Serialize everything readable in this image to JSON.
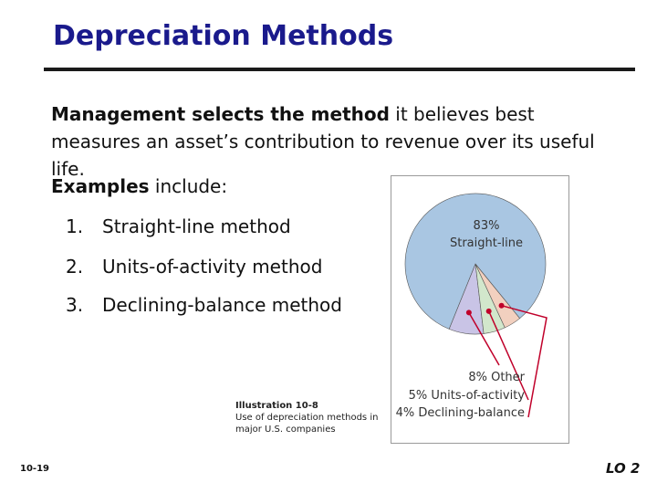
{
  "title": "Depreciation Methods",
  "intro": {
    "bold": "Management selects the method",
    "rest": " it believes best measures an asset’s contribution to revenue over its useful life."
  },
  "examples": {
    "bold": "Examples",
    "rest": " include:"
  },
  "methods": [
    {
      "num": "1.",
      "label": "Straight-line method"
    },
    {
      "num": "2.",
      "label": "Units-of-activity method"
    },
    {
      "num": "3.",
      "label": "Declining-balance method"
    }
  ],
  "caption": {
    "title": "Illustration 10-8",
    "body": "Use of depreciation methods in major U.S. companies"
  },
  "slide_number": "10-19",
  "lo_label": "LO 2",
  "colors": {
    "title": "#1a1a8c",
    "pie_main": "#a9c6e2",
    "pie_other": "#c9c4e6",
    "pie_units": "#d2e7cc",
    "pie_declining": "#f2d0bf",
    "leader_line": "#c0002a"
  },
  "chart_data": {
    "type": "pie",
    "slices": [
      {
        "label": "Straight-line",
        "value_label": "83%",
        "value": 83
      },
      {
        "label": "Other",
        "value_label": "8%",
        "value": 8
      },
      {
        "label": "Units-of-activity",
        "value_label": "5%",
        "value": 5
      },
      {
        "label": "Declining-balance",
        "value_label": "4%",
        "value": 4
      }
    ]
  }
}
